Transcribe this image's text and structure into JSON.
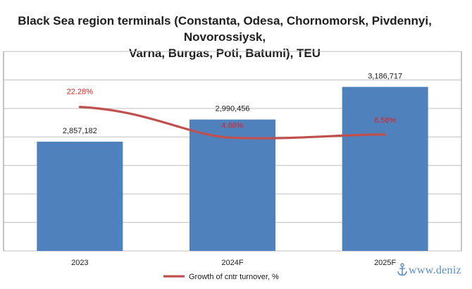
{
  "chart_data": {
    "type": "bar",
    "title_lines": [
      "Black Sea region terminals (Constanta, Odesa, Chornomorsk, Pivdennyi, Novorossiysk,",
      "Varna, Burgas, Poti, Batumi), TEU"
    ],
    "categories": [
      "2023",
      "2024F",
      "2025F"
    ],
    "values": [
      2857182,
      2990456,
      3186717
    ],
    "value_labels": [
      "2,857,182",
      "2,990,456",
      "3,186,717"
    ],
    "ylim": [
      2200000,
      3400000
    ],
    "grid": true,
    "bar_color": "#4f81bd",
    "line_series": {
      "name": "Growth of cntr turnover, %",
      "values": [
        22.28,
        4.66,
        6.56
      ],
      "labels": [
        "22.28%",
        "4.66%",
        "6.56%"
      ],
      "color": "#c0504d",
      "label_color": "#e02020",
      "secondary_ylim": [
        -60,
        54
      ]
    },
    "legend_position": "bottom"
  },
  "watermark": {
    "text": "www.deniz",
    "icon": "anchor-icon"
  }
}
